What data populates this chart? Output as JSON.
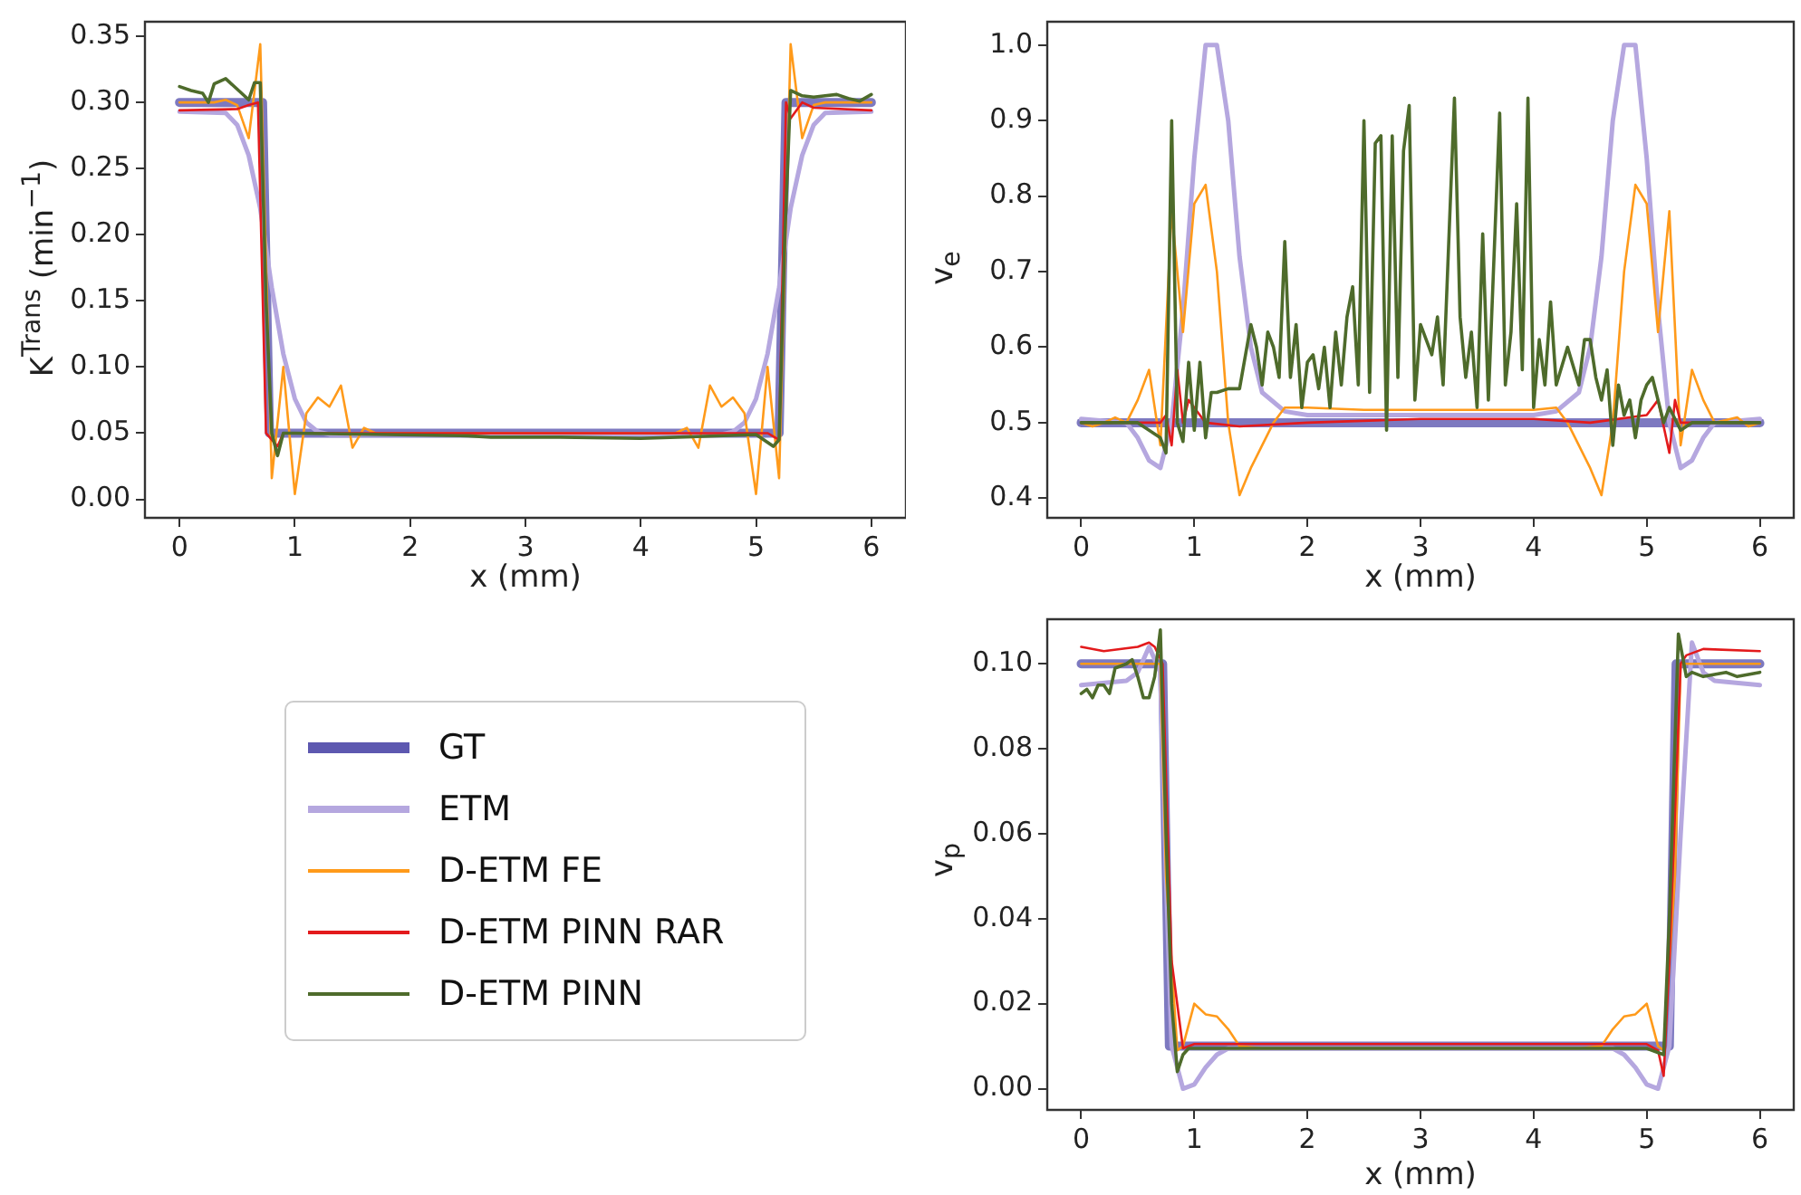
{
  "chart_data": [
    {
      "type": "line",
      "xlabel": "x (mm)",
      "ylabel": "K$^{Trans}$ (min$^{−1}$)",
      "legend": "bottom",
      "xlim": [
        -0.3,
        6.3
      ],
      "xticks": [
        0,
        1,
        2,
        3,
        4,
        5,
        6
      ],
      "ylim": [
        -0.014,
        0.361
      ],
      "yticks": [
        {
          "value": 0,
          "label": "0.00"
        },
        {
          "value": 0.05,
          "label": "0.05"
        },
        {
          "value": 0.1,
          "label": "0.10"
        },
        {
          "value": 0.15,
          "label": "0.15"
        },
        {
          "value": 0.2,
          "label": "0.20"
        },
        {
          "value": 0.25,
          "label": "0.25"
        },
        {
          "value": 0.3,
          "label": "0.30"
        },
        {
          "value": 0.35,
          "label": "0.35"
        }
      ],
      "series": [
        {
          "name": "GT",
          "color": "#5d58b0",
          "x": [
            0,
            0.72,
            0.78,
            5.2,
            5.26,
            6
          ],
          "values": [
            0.3,
            0.3,
            0.05,
            0.05,
            0.3,
            0.3
          ]
        },
        {
          "name": "ETM",
          "color": "#b5a7df",
          "x": [
            0,
            0.4,
            0.5,
            0.6,
            0.7,
            0.8,
            0.9,
            1.0,
            1.1,
            1.2,
            1.3,
            4.7,
            4.8,
            4.9,
            5.0,
            5.1,
            5.2,
            5.3,
            5.4,
            5.5,
            5.6,
            6
          ],
          "values": [
            0.293,
            0.292,
            0.283,
            0.26,
            0.22,
            0.16,
            0.11,
            0.076,
            0.058,
            0.051,
            0.049,
            0.049,
            0.051,
            0.058,
            0.076,
            0.11,
            0.16,
            0.22,
            0.26,
            0.283,
            0.292,
            0.293
          ]
        },
        {
          "name": "D-ETM FE",
          "color": "#ff9a1a",
          "x": [
            0,
            0.3,
            0.4,
            0.5,
            0.6,
            0.7,
            0.8,
            0.9,
            1.0,
            1.1,
            1.2,
            1.3,
            1.4,
            1.5,
            1.6,
            1.7,
            4.3,
            4.4,
            4.5,
            4.6,
            4.7,
            4.8,
            4.9,
            5.0,
            5.1,
            5.2,
            5.3,
            5.4,
            5.5,
            5.6,
            6
          ],
          "values": [
            0.3,
            0.3,
            0.302,
            0.298,
            0.273,
            0.344,
            0.016,
            0.1,
            0.004,
            0.065,
            0.077,
            0.07,
            0.086,
            0.039,
            0.054,
            0.05,
            0.05,
            0.054,
            0.039,
            0.086,
            0.07,
            0.077,
            0.065,
            0.004,
            0.1,
            0.016,
            0.344,
            0.273,
            0.298,
            0.3,
            0.3
          ]
        },
        {
          "name": "D-ETM PINN RAR",
          "color": "#e31a1c",
          "x": [
            0,
            0.5,
            0.6,
            0.68,
            0.75,
            0.85,
            0.9,
            5.1,
            5.2,
            5.26,
            5.3,
            5.4,
            5.5,
            6
          ],
          "values": [
            0.294,
            0.295,
            0.298,
            0.3,
            0.05,
            0.04,
            0.05,
            0.05,
            0.045,
            0.3,
            0.288,
            0.3,
            0.296,
            0.294
          ]
        },
        {
          "name": "D-ETM PINN",
          "color": "#4e6b2b",
          "x": [
            0,
            0.1,
            0.2,
            0.25,
            0.3,
            0.4,
            0.5,
            0.6,
            0.65,
            0.7,
            0.75,
            0.8,
            0.85,
            0.9,
            1,
            2.5,
            2.7,
            3.3,
            4.0,
            5.0,
            5.15,
            5.2,
            5.25,
            5.3,
            5.4,
            5.5,
            5.6,
            5.7,
            5.8,
            5.9,
            6
          ],
          "values": [
            0.312,
            0.309,
            0.307,
            0.3,
            0.314,
            0.318,
            0.31,
            0.302,
            0.315,
            0.315,
            0.15,
            0.05,
            0.033,
            0.05,
            0.05,
            0.048,
            0.047,
            0.047,
            0.046,
            0.049,
            0.04,
            0.045,
            0.2,
            0.309,
            0.305,
            0.304,
            0.305,
            0.306,
            0.303,
            0.301,
            0.306
          ]
        }
      ]
    },
    {
      "type": "line",
      "xlabel": "x (mm)",
      "ylabel": "v$_{e}$",
      "xlim": [
        -0.3,
        6.3
      ],
      "xticks": [
        0,
        1,
        2,
        3,
        4,
        5,
        6
      ],
      "ylim": [
        0.374,
        1.031
      ],
      "yticks": [
        {
          "value": 0.4,
          "label": "0.4"
        },
        {
          "value": 0.5,
          "label": "0.5"
        },
        {
          "value": 0.6,
          "label": "0.6"
        },
        {
          "value": 0.7,
          "label": "0.7"
        },
        {
          "value": 0.8,
          "label": "0.8"
        },
        {
          "value": 0.9,
          "label": "0.9"
        },
        {
          "value": 1.0,
          "label": "1.0"
        }
      ],
      "series": [
        {
          "color": "#5d58b0",
          "x": [
            0,
            6
          ],
          "values": [
            0.5,
            0.5
          ]
        },
        {
          "color": "#b5a7df",
          "x": [
            0,
            0.4,
            0.5,
            0.6,
            0.7,
            0.8,
            0.9,
            1.0,
            1.1,
            1.2,
            1.3,
            1.4,
            1.5,
            1.6,
            1.8,
            2,
            4,
            4.2,
            4.4,
            4.5,
            4.6,
            4.7,
            4.8,
            4.9,
            5.0,
            5.1,
            5.2,
            5.3,
            5.4,
            5.5,
            5.6,
            6
          ],
          "values": [
            0.505,
            0.5,
            0.48,
            0.45,
            0.44,
            0.5,
            0.65,
            0.85,
            1.0,
            1.0,
            0.9,
            0.72,
            0.6,
            0.54,
            0.515,
            0.51,
            0.51,
            0.515,
            0.54,
            0.6,
            0.72,
            0.9,
            1.0,
            1.0,
            0.85,
            0.65,
            0.5,
            0.44,
            0.45,
            0.48,
            0.5,
            0.505
          ]
        },
        {
          "color": "#ff9a1a",
          "x": [
            0,
            0.1,
            0.2,
            0.3,
            0.4,
            0.5,
            0.6,
            0.7,
            0.8,
            0.9,
            1.0,
            1.1,
            1.2,
            1.3,
            1.4,
            1.5,
            1.6,
            1.7,
            1.8,
            2,
            2.5,
            4,
            4.2,
            4.3,
            4.4,
            4.5,
            4.6,
            4.7,
            4.8,
            4.9,
            5.0,
            5.1,
            5.2,
            5.3,
            5.4,
            5.5,
            5.6,
            5.8,
            5.9,
            6
          ],
          "values": [
            0.5,
            0.495,
            0.5,
            0.507,
            0.5,
            0.53,
            0.57,
            0.47,
            0.78,
            0.62,
            0.79,
            0.815,
            0.7,
            0.5,
            0.404,
            0.44,
            0.47,
            0.5,
            0.52,
            0.52,
            0.517,
            0.517,
            0.52,
            0.5,
            0.47,
            0.44,
            0.404,
            0.5,
            0.7,
            0.815,
            0.79,
            0.62,
            0.78,
            0.47,
            0.57,
            0.53,
            0.5,
            0.507,
            0.495,
            0.5
          ]
        },
        {
          "color": "#e31a1c",
          "x": [
            0,
            0.7,
            0.75,
            0.8,
            0.85,
            0.9,
            0.95,
            1.0,
            1.1,
            1.4,
            2,
            3,
            4,
            4.5,
            5.0,
            5.1,
            5.2,
            5.25,
            5.3,
            6
          ],
          "values": [
            0.5,
            0.5,
            0.51,
            0.47,
            0.57,
            0.5,
            0.53,
            0.52,
            0.5,
            0.495,
            0.5,
            0.505,
            0.505,
            0.5,
            0.51,
            0.53,
            0.46,
            0.53,
            0.5,
            0.5
          ]
        },
        {
          "color": "#4e6b2b",
          "x": [
            0,
            0.5,
            0.7,
            0.75,
            0.8,
            0.85,
            0.9,
            0.95,
            1.0,
            1.05,
            1.1,
            1.15,
            1.2,
            1.3,
            1.4,
            1.5,
            1.55,
            1.6,
            1.65,
            1.7,
            1.75,
            1.8,
            1.85,
            1.9,
            1.95,
            2.0,
            2.05,
            2.1,
            2.15,
            2.2,
            2.25,
            2.3,
            2.35,
            2.4,
            2.45,
            2.5,
            2.55,
            2.6,
            2.65,
            2.7,
            2.75,
            2.8,
            2.85,
            2.9,
            2.95,
            3.0,
            3.1,
            3.15,
            3.2,
            3.3,
            3.35,
            3.4,
            3.45,
            3.5,
            3.55,
            3.6,
            3.7,
            3.75,
            3.8,
            3.85,
            3.9,
            3.95,
            4.0,
            4.05,
            4.1,
            4.15,
            4.2,
            4.3,
            4.4,
            4.45,
            4.5,
            4.55,
            4.6,
            4.65,
            4.7,
            4.75,
            4.8,
            4.85,
            4.9,
            4.95,
            5.0,
            5.05,
            5.1,
            5.15,
            5.2,
            5.3,
            5.4,
            6
          ],
          "values": [
            0.5,
            0.5,
            0.48,
            0.46,
            0.9,
            0.5,
            0.475,
            0.58,
            0.49,
            0.58,
            0.48,
            0.54,
            0.54,
            0.545,
            0.545,
            0.63,
            0.6,
            0.55,
            0.62,
            0.6,
            0.56,
            0.74,
            0.56,
            0.63,
            0.52,
            0.58,
            0.59,
            0.545,
            0.6,
            0.52,
            0.62,
            0.55,
            0.64,
            0.68,
            0.55,
            0.9,
            0.54,
            0.87,
            0.88,
            0.49,
            0.88,
            0.56,
            0.86,
            0.92,
            0.53,
            0.63,
            0.59,
            0.64,
            0.55,
            0.93,
            0.64,
            0.56,
            0.62,
            0.52,
            0.75,
            0.53,
            0.91,
            0.55,
            0.62,
            0.79,
            0.57,
            0.93,
            0.52,
            0.61,
            0.55,
            0.66,
            0.55,
            0.6,
            0.55,
            0.61,
            0.61,
            0.56,
            0.53,
            0.57,
            0.47,
            0.55,
            0.51,
            0.53,
            0.48,
            0.53,
            0.55,
            0.56,
            0.53,
            0.5,
            0.52,
            0.49,
            0.5,
            0.5
          ]
        }
      ]
    },
    {
      "type": "line",
      "xlabel": "x (mm)",
      "ylabel": "v$_{p}$",
      "xlim": [
        -0.3,
        6.3
      ],
      "xticks": [
        0,
        1,
        2,
        3,
        4,
        5,
        6
      ],
      "ylim": [
        -0.005,
        0.1105
      ],
      "yticks": [
        {
          "value": 0,
          "label": "0.00"
        },
        {
          "value": 0.02,
          "label": "0.02"
        },
        {
          "value": 0.04,
          "label": "0.04"
        },
        {
          "value": 0.06,
          "label": "0.06"
        },
        {
          "value": 0.08,
          "label": "0.08"
        },
        {
          "value": 0.1,
          "label": "0.10"
        }
      ],
      "series": [
        {
          "color": "#5d58b0",
          "x": [
            0,
            0.72,
            0.78,
            5.2,
            5.26,
            6
          ],
          "values": [
            0.1,
            0.1,
            0.01,
            0.01,
            0.1,
            0.1
          ]
        },
        {
          "color": "#b5a7df",
          "x": [
            0,
            0.4,
            0.5,
            0.6,
            0.7,
            0.75,
            0.8,
            0.9,
            1.0,
            1.1,
            1.2,
            1.3,
            4.7,
            4.8,
            4.9,
            5.0,
            5.1,
            5.2,
            5.3,
            5.4,
            5.5,
            5.6,
            6
          ],
          "values": [
            0.095,
            0.096,
            0.098,
            0.104,
            0.098,
            0.05,
            0.01,
            0.0,
            0.001,
            0.005,
            0.008,
            0.0095,
            0.0095,
            0.008,
            0.005,
            0.001,
            0.0,
            0.01,
            0.06,
            0.105,
            0.098,
            0.096,
            0.095
          ]
        },
        {
          "color": "#ff9a1a",
          "x": [
            0,
            0.7,
            0.75,
            0.85,
            0.9,
            1.0,
            1.1,
            1.2,
            1.3,
            1.4,
            1.6,
            4.4,
            4.6,
            4.7,
            4.8,
            4.9,
            5.0,
            5.1,
            5.15,
            5.25,
            5.3,
            6
          ],
          "values": [
            0.1,
            0.1,
            0.05,
            0.009,
            0.01,
            0.02,
            0.0175,
            0.017,
            0.014,
            0.01,
            0.0095,
            0.0095,
            0.01,
            0.014,
            0.017,
            0.0175,
            0.02,
            0.01,
            0.009,
            0.05,
            0.1,
            0.1
          ]
        },
        {
          "color": "#e31a1c",
          "x": [
            0,
            0.2,
            0.5,
            0.6,
            0.65,
            0.72,
            0.8,
            0.9,
            1.0,
            5.0,
            5.1,
            5.15,
            5.2,
            5.3,
            5.35,
            5.5,
            6
          ],
          "values": [
            0.104,
            0.103,
            0.104,
            0.105,
            0.104,
            0.1,
            0.03,
            0.0095,
            0.0105,
            0.0105,
            0.009,
            0.003,
            0.03,
            0.1,
            0.102,
            0.1035,
            0.103
          ]
        },
        {
          "color": "#4e6b2b",
          "x": [
            0,
            0.05,
            0.1,
            0.15,
            0.2,
            0.25,
            0.3,
            0.4,
            0.45,
            0.5,
            0.55,
            0.6,
            0.65,
            0.7,
            0.75,
            0.8,
            0.85,
            0.9,
            0.95,
            5.0,
            5.15,
            5.2,
            5.28,
            5.35,
            5.4,
            5.5,
            5.7,
            5.8,
            6
          ],
          "values": [
            0.093,
            0.094,
            0.092,
            0.095,
            0.095,
            0.093,
            0.099,
            0.1,
            0.101,
            0.097,
            0.092,
            0.092,
            0.097,
            0.108,
            0.06,
            0.02,
            0.004,
            0.008,
            0.0095,
            0.0095,
            0.008,
            0.04,
            0.107,
            0.097,
            0.098,
            0.097,
            0.098,
            0.097,
            0.098
          ]
        }
      ]
    }
  ]
}
